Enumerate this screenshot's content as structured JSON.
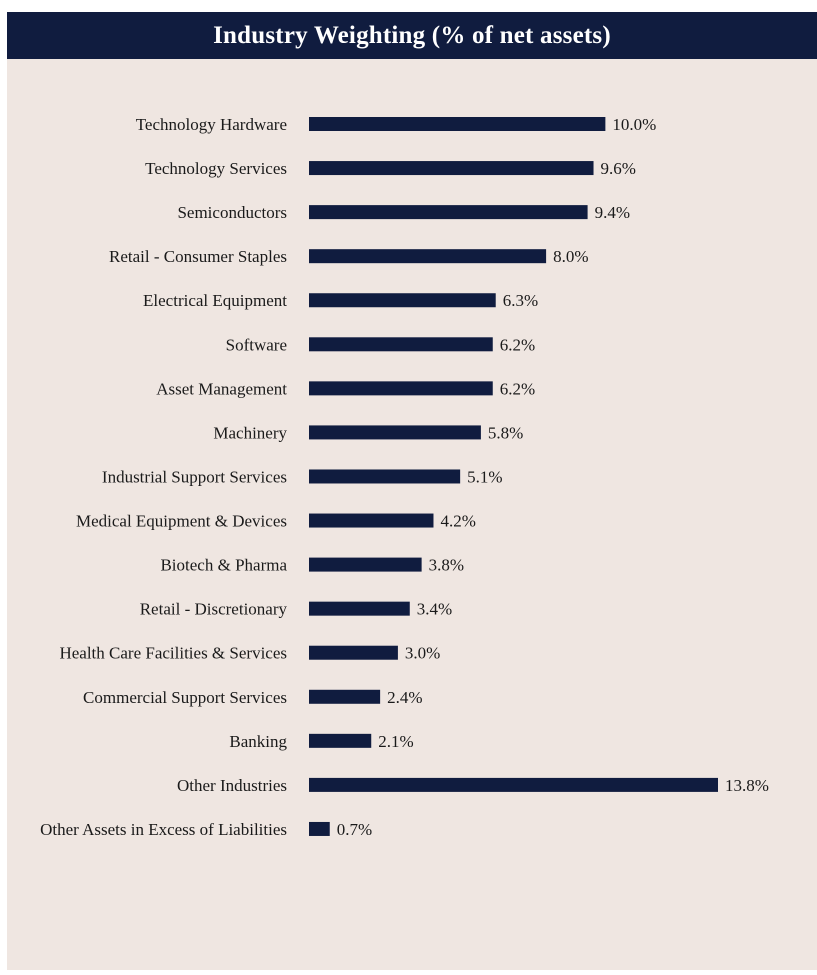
{
  "colors": {
    "header_bg": "#101c3f",
    "panel_bg": "#efe6e1",
    "bar": "#101c3f"
  },
  "chart_data": {
    "type": "bar",
    "orientation": "horizontal",
    "title": "Industry Weighting (% of net assets)",
    "categories": [
      "Technology Hardware",
      "Technology Services",
      "Semiconductors",
      "Retail - Consumer Staples",
      "Electrical Equipment",
      "Software",
      "Asset Management",
      "Machinery",
      "Industrial Support Services",
      "Medical Equipment & Devices",
      "Biotech & Pharma",
      "Retail - Discretionary",
      "Health Care Facilities & Services",
      "Commercial Support Services",
      "Banking",
      "Other Industries",
      "Other Assets in Excess of Liabilities"
    ],
    "values": [
      10.0,
      9.6,
      9.4,
      8.0,
      6.3,
      6.2,
      6.2,
      5.8,
      5.1,
      4.2,
      3.8,
      3.4,
      3.0,
      2.4,
      2.1,
      13.8,
      0.7
    ],
    "labels": [
      "10.0%",
      "9.6%",
      "9.4%",
      "8.0%",
      "6.3%",
      "6.2%",
      "6.2%",
      "5.8%",
      "5.1%",
      "4.2%",
      "3.8%",
      "3.4%",
      "3.0%",
      "2.4%",
      "2.1%",
      "13.8%",
      "0.7%"
    ],
    "xlabel": "",
    "ylabel": "",
    "xlim": [
      0,
      13.8
    ],
    "grid": false,
    "legend": "none"
  }
}
